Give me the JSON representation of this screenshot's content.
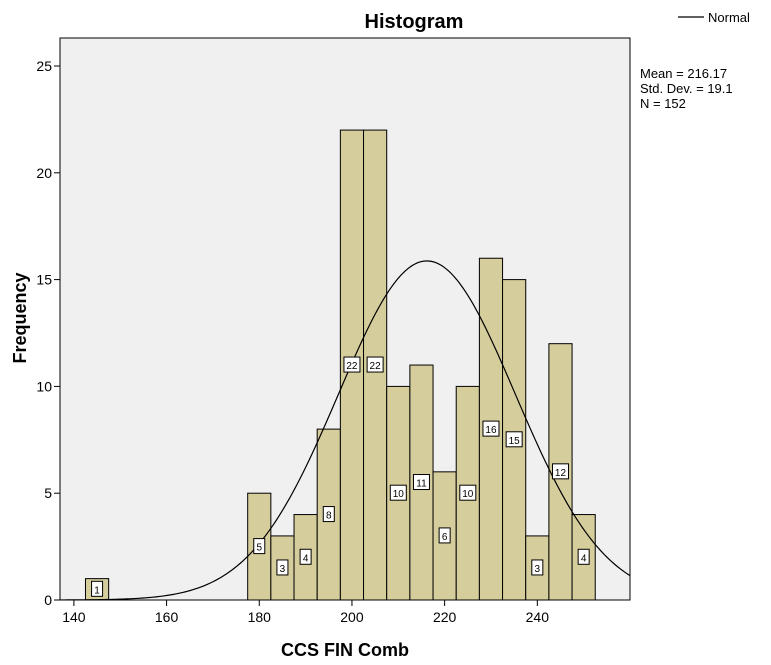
{
  "chart_data": {
    "type": "bar",
    "title": "Histogram",
    "xlabel": "CCS FIN Comb",
    "ylabel": "Frequency",
    "xlim": [
      137,
      260
    ],
    "ylim": [
      0,
      25
    ],
    "x_ticks": [
      "140",
      "160",
      "180",
      "200",
      "220",
      "240"
    ],
    "y_ticks": [
      "0",
      "5",
      "10",
      "15",
      "20",
      "25"
    ],
    "bin_width": 5,
    "bins": [
      {
        "x0": 142.5,
        "value": 1,
        "label": "1"
      },
      {
        "x0": 177.5,
        "value": 5,
        "label": "5"
      },
      {
        "x0": 182.5,
        "value": 3,
        "label": "3"
      },
      {
        "x0": 187.5,
        "value": 4,
        "label": "4"
      },
      {
        "x0": 192.5,
        "value": 8,
        "label": "8"
      },
      {
        "x0": 197.5,
        "value": 22,
        "label": "22"
      },
      {
        "x0": 202.5,
        "value": 22,
        "label": "22"
      },
      {
        "x0": 207.5,
        "value": 10,
        "label": "10"
      },
      {
        "x0": 212.5,
        "value": 11,
        "label": "11"
      },
      {
        "x0": 217.5,
        "value": 6,
        "label": "6"
      },
      {
        "x0": 222.5,
        "value": 10,
        "label": "10"
      },
      {
        "x0": 227.5,
        "value": 16,
        "label": "16"
      },
      {
        "x0": 232.5,
        "value": 15,
        "label": "15"
      },
      {
        "x0": 237.5,
        "value": 3,
        "label": "3"
      },
      {
        "x0": 242.5,
        "value": 12,
        "label": "12"
      },
      {
        "x0": 247.5,
        "value": 4,
        "label": "4"
      }
    ],
    "normal_curve": {
      "mean": 216.17,
      "sd": 19.1,
      "n": 152
    },
    "stats": {
      "mean": "Mean = 216.17",
      "sd": "Std. Dev. = 19.1",
      "n": "N = 152"
    },
    "legend": {
      "label": "Normal",
      "position": "top-right"
    },
    "colors": {
      "bar_fill": "#d6cd9c",
      "plot_bg": "#f0f0f0",
      "line": "#000000"
    },
    "grid": false
  }
}
